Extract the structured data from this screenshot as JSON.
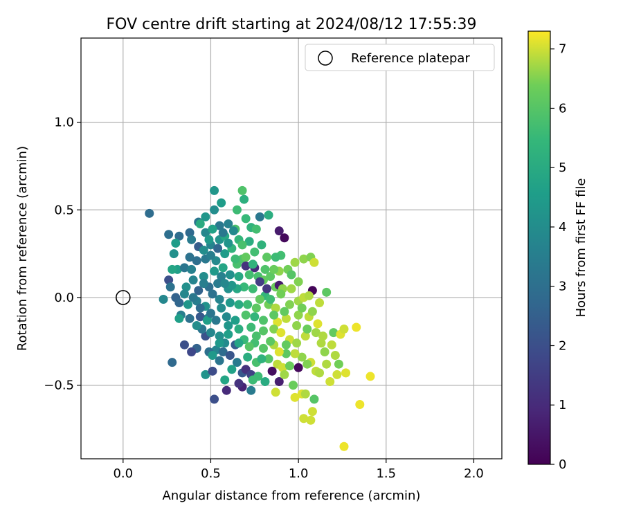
{
  "chart_data": {
    "type": "scatter",
    "title": "FOV centre drift starting at 2024/08/12 17:55:39",
    "xlabel": "Angular distance from reference (arcmin)",
    "ylabel": "Rotation from reference (arcmin)",
    "xlim": [
      -0.24,
      2.16
    ],
    "ylim": [
      -0.92,
      1.48
    ],
    "xticks": [
      0.0,
      0.5,
      1.0,
      1.5,
      2.0
    ],
    "xtick_labels": [
      "0.0",
      "0.5",
      "1.0",
      "1.5",
      "2.0"
    ],
    "yticks": [
      -0.5,
      0.0,
      0.5,
      1.0
    ],
    "ytick_labels": [
      "−0.5",
      "0.0",
      "0.5",
      "1.0"
    ],
    "grid": true,
    "legend": {
      "placement": "top-right",
      "entries": [
        {
          "label": "Reference platepar",
          "marker": "open-circle"
        }
      ]
    },
    "reference_point": {
      "x": 0.0,
      "y": 0.0,
      "label": "Reference platepar"
    },
    "colorbar": {
      "label": "Hours from first FF file",
      "range": [
        0,
        7.3
      ],
      "ticks": [
        0,
        1,
        2,
        3,
        4,
        5,
        6,
        7
      ],
      "tick_labels": [
        "0",
        "1",
        "2",
        "3",
        "4",
        "5",
        "6",
        "7"
      ],
      "colormap": "viridis"
    },
    "points": [
      {
        "x": 0.15,
        "y": 0.48,
        "h": 2.9
      },
      {
        "x": 0.52,
        "y": 0.61,
        "h": 4.3
      },
      {
        "x": 0.68,
        "y": 0.61,
        "h": 5.9
      },
      {
        "x": 0.56,
        "y": 0.54,
        "h": 4.5
      },
      {
        "x": 0.69,
        "y": 0.56,
        "h": 5.2
      },
      {
        "x": 0.65,
        "y": 0.5,
        "h": 5.6
      },
      {
        "x": 0.52,
        "y": 0.5,
        "h": 4.0
      },
      {
        "x": 0.47,
        "y": 0.46,
        "h": 4.3
      },
      {
        "x": 0.43,
        "y": 0.43,
        "h": 3.2
      },
      {
        "x": 0.44,
        "y": 0.42,
        "h": 5.0
      },
      {
        "x": 0.26,
        "y": 0.36,
        "h": 3.0
      },
      {
        "x": 0.32,
        "y": 0.35,
        "h": 2.9
      },
      {
        "x": 0.38,
        "y": 0.37,
        "h": 2.8
      },
      {
        "x": 0.3,
        "y": 0.31,
        "h": 4.5
      },
      {
        "x": 0.39,
        "y": 0.33,
        "h": 3.4
      },
      {
        "x": 0.47,
        "y": 0.37,
        "h": 3.8
      },
      {
        "x": 0.55,
        "y": 0.41,
        "h": 3.3
      },
      {
        "x": 0.6,
        "y": 0.42,
        "h": 3.6
      },
      {
        "x": 0.7,
        "y": 0.45,
        "h": 5.5
      },
      {
        "x": 0.78,
        "y": 0.46,
        "h": 3.3
      },
      {
        "x": 0.83,
        "y": 0.47,
        "h": 5.1
      },
      {
        "x": 0.73,
        "y": 0.4,
        "h": 5.3
      },
      {
        "x": 0.76,
        "y": 0.39,
        "h": 5.7
      },
      {
        "x": 0.64,
        "y": 0.39,
        "h": 5.8
      },
      {
        "x": 0.63,
        "y": 0.38,
        "h": 3.9
      },
      {
        "x": 0.89,
        "y": 0.38,
        "h": 0.6
      },
      {
        "x": 0.92,
        "y": 0.34,
        "h": 0.2
      },
      {
        "x": 0.79,
        "y": 0.3,
        "h": 5.3
      },
      {
        "x": 0.29,
        "y": 0.25,
        "h": 4.1
      },
      {
        "x": 0.38,
        "y": 0.23,
        "h": 3.1
      },
      {
        "x": 0.43,
        "y": 0.29,
        "h": 2.4
      },
      {
        "x": 0.5,
        "y": 0.3,
        "h": 3.7
      },
      {
        "x": 0.55,
        "y": 0.33,
        "h": 4.2
      },
      {
        "x": 0.58,
        "y": 0.35,
        "h": 4.9
      },
      {
        "x": 0.66,
        "y": 0.33,
        "h": 5.4
      },
      {
        "x": 0.72,
        "y": 0.32,
        "h": 5.1
      },
      {
        "x": 0.9,
        "y": 0.24,
        "h": 5.7
      },
      {
        "x": 0.87,
        "y": 0.23,
        "h": 5.6
      },
      {
        "x": 0.82,
        "y": 0.23,
        "h": 6.1
      },
      {
        "x": 0.98,
        "y": 0.2,
        "h": 6.7
      },
      {
        "x": 1.03,
        "y": 0.22,
        "h": 6.6
      },
      {
        "x": 1.07,
        "y": 0.23,
        "h": 6.5
      },
      {
        "x": 1.09,
        "y": 0.2,
        "h": 7.0
      },
      {
        "x": 0.89,
        "y": 0.15,
        "h": 6.6
      },
      {
        "x": 0.94,
        "y": 0.16,
        "h": 6.4
      },
      {
        "x": 0.75,
        "y": 0.17,
        "h": 1.0
      },
      {
        "x": 0.68,
        "y": 0.22,
        "h": 5.9
      },
      {
        "x": 0.7,
        "y": 0.23,
        "h": 6.2
      },
      {
        "x": 0.65,
        "y": 0.19,
        "h": 5.8
      },
      {
        "x": 0.57,
        "y": 0.17,
        "h": 4.8
      },
      {
        "x": 0.53,
        "y": 0.21,
        "h": 3.9
      },
      {
        "x": 0.47,
        "y": 0.22,
        "h": 3.3
      },
      {
        "x": 0.42,
        "y": 0.21,
        "h": 3.0
      },
      {
        "x": 0.31,
        "y": 0.16,
        "h": 4.6
      },
      {
        "x": 0.28,
        "y": 0.16,
        "h": 4.8
      },
      {
        "x": 0.35,
        "y": 0.17,
        "h": 3.2
      },
      {
        "x": 0.39,
        "y": 0.16,
        "h": 3.6
      },
      {
        "x": 0.26,
        "y": 0.1,
        "h": 2.0
      },
      {
        "x": 0.4,
        "y": 0.1,
        "h": 3.7
      },
      {
        "x": 0.46,
        "y": 0.12,
        "h": 4.0
      },
      {
        "x": 0.56,
        "y": 0.12,
        "h": 3.6
      },
      {
        "x": 0.61,
        "y": 0.13,
        "h": 4.1
      },
      {
        "x": 0.72,
        "y": 0.13,
        "h": 5.7
      },
      {
        "x": 0.77,
        "y": 0.12,
        "h": 5.8
      },
      {
        "x": 0.8,
        "y": 0.1,
        "h": 6.2
      },
      {
        "x": 0.84,
        "y": 0.12,
        "h": 6.1
      },
      {
        "x": 0.87,
        "y": 0.06,
        "h": 6.3
      },
      {
        "x": 0.89,
        "y": 0.07,
        "h": 0.6
      },
      {
        "x": 0.96,
        "y": 0.13,
        "h": 6.0
      },
      {
        "x": 0.91,
        "y": 0.05,
        "h": 6.6
      },
      {
        "x": 0.81,
        "y": 0.01,
        "h": 5.4
      },
      {
        "x": 0.78,
        "y": -0.01,
        "h": 6.2
      },
      {
        "x": 0.74,
        "y": 0.05,
        "h": 5.6
      },
      {
        "x": 0.69,
        "y": 0.06,
        "h": 5.5
      },
      {
        "x": 0.65,
        "y": 0.05,
        "h": 4.9
      },
      {
        "x": 0.6,
        "y": 0.05,
        "h": 4.1
      },
      {
        "x": 0.54,
        "y": 0.08,
        "h": 3.4
      },
      {
        "x": 0.49,
        "y": 0.06,
        "h": 3.0
      },
      {
        "x": 0.43,
        "y": 0.04,
        "h": 2.6
      },
      {
        "x": 0.36,
        "y": 0.06,
        "h": 4.1
      },
      {
        "x": 0.3,
        "y": 0.0,
        "h": 2.6
      },
      {
        "x": 0.23,
        "y": -0.01,
        "h": 3.8
      },
      {
        "x": 0.32,
        "y": -0.03,
        "h": 2.7
      },
      {
        "x": 0.37,
        "y": -0.04,
        "h": 4.3
      },
      {
        "x": 0.42,
        "y": -0.02,
        "h": 3.5
      },
      {
        "x": 0.47,
        "y": -0.05,
        "h": 4.2
      },
      {
        "x": 0.55,
        "y": -0.01,
        "h": 3.7
      },
      {
        "x": 0.61,
        "y": -0.03,
        "h": 4.4
      },
      {
        "x": 0.66,
        "y": -0.04,
        "h": 5.0
      },
      {
        "x": 0.71,
        "y": -0.04,
        "h": 5.6
      },
      {
        "x": 0.76,
        "y": -0.06,
        "h": 6.1
      },
      {
        "x": 0.83,
        "y": -0.04,
        "h": 6.4
      },
      {
        "x": 0.87,
        "y": -0.06,
        "h": 6.8
      },
      {
        "x": 0.95,
        "y": -0.04,
        "h": 6.5
      },
      {
        "x": 1.0,
        "y": -0.02,
        "h": 6.7
      },
      {
        "x": 1.03,
        "y": 0.0,
        "h": 6.9
      },
      {
        "x": 1.08,
        "y": 0.04,
        "h": 0.1
      },
      {
        "x": 1.06,
        "y": 0.01,
        "h": 6.8
      },
      {
        "x": 1.12,
        "y": -0.03,
        "h": 6.9
      },
      {
        "x": 1.16,
        "y": 0.03,
        "h": 6.1
      },
      {
        "x": 1.06,
        "y": -0.11,
        "h": 6.9
      },
      {
        "x": 1.0,
        "y": -0.1,
        "h": 6.6
      },
      {
        "x": 0.93,
        "y": -0.12,
        "h": 6.9
      },
      {
        "x": 0.88,
        "y": -0.14,
        "h": 7.1
      },
      {
        "x": 0.8,
        "y": -0.13,
        "h": 5.9
      },
      {
        "x": 0.75,
        "y": -0.11,
        "h": 5.4
      },
      {
        "x": 0.7,
        "y": -0.1,
        "h": 5.9
      },
      {
        "x": 0.64,
        "y": -0.13,
        "h": 4.6
      },
      {
        "x": 0.59,
        "y": -0.11,
        "h": 3.9
      },
      {
        "x": 0.53,
        "y": -0.13,
        "h": 3.3
      },
      {
        "x": 0.48,
        "y": -0.12,
        "h": 3.6
      },
      {
        "x": 0.44,
        "y": -0.11,
        "h": 2.3
      },
      {
        "x": 0.38,
        "y": -0.12,
        "h": 3.1
      },
      {
        "x": 0.33,
        "y": -0.1,
        "h": 3.5
      },
      {
        "x": 0.32,
        "y": -0.12,
        "h": 4.6
      },
      {
        "x": 0.47,
        "y": -0.22,
        "h": 2.1
      },
      {
        "x": 0.55,
        "y": -0.22,
        "h": 4.1
      },
      {
        "x": 0.6,
        "y": -0.21,
        "h": 4.6
      },
      {
        "x": 0.66,
        "y": -0.18,
        "h": 5.1
      },
      {
        "x": 0.73,
        "y": -0.17,
        "h": 5.6
      },
      {
        "x": 0.8,
        "y": -0.19,
        "h": 6.0
      },
      {
        "x": 0.86,
        "y": -0.18,
        "h": 6.5
      },
      {
        "x": 0.9,
        "y": -0.2,
        "h": 7.1
      },
      {
        "x": 0.95,
        "y": -0.24,
        "h": 7.0
      },
      {
        "x": 1.04,
        "y": -0.22,
        "h": 6.9
      },
      {
        "x": 1.1,
        "y": -0.2,
        "h": 6.7
      },
      {
        "x": 1.14,
        "y": -0.22,
        "h": 6.8
      },
      {
        "x": 1.2,
        "y": -0.2,
        "h": 6.2
      },
      {
        "x": 1.24,
        "y": -0.21,
        "h": 7.1
      },
      {
        "x": 1.26,
        "y": -0.18,
        "h": 7.0
      },
      {
        "x": 1.33,
        "y": -0.17,
        "h": 7.2
      },
      {
        "x": 1.41,
        "y": -0.45,
        "h": 7.2
      },
      {
        "x": 1.35,
        "y": -0.61,
        "h": 7.2
      },
      {
        "x": 1.26,
        "y": -0.85,
        "h": 7.2
      },
      {
        "x": 1.27,
        "y": -0.43,
        "h": 7.1
      },
      {
        "x": 1.22,
        "y": -0.44,
        "h": 7.0
      },
      {
        "x": 1.18,
        "y": -0.48,
        "h": 7.0
      },
      {
        "x": 1.1,
        "y": -0.42,
        "h": 6.9
      },
      {
        "x": 1.07,
        "y": -0.37,
        "h": 7.0
      },
      {
        "x": 1.02,
        "y": -0.34,
        "h": 6.6
      },
      {
        "x": 0.98,
        "y": -0.32,
        "h": 6.9
      },
      {
        "x": 0.93,
        "y": -0.32,
        "h": 6.1
      },
      {
        "x": 0.89,
        "y": -0.31,
        "h": 7.1
      },
      {
        "x": 0.86,
        "y": -0.27,
        "h": 6.8
      },
      {
        "x": 0.8,
        "y": -0.29,
        "h": 6.0
      },
      {
        "x": 0.75,
        "y": -0.26,
        "h": 5.7
      },
      {
        "x": 0.69,
        "y": -0.24,
        "h": 5.5
      },
      {
        "x": 0.64,
        "y": -0.27,
        "h": 2.4
      },
      {
        "x": 0.58,
        "y": -0.26,
        "h": 3.9
      },
      {
        "x": 0.53,
        "y": -0.3,
        "h": 3.7
      },
      {
        "x": 0.49,
        "y": -0.31,
        "h": 3.0
      },
      {
        "x": 0.42,
        "y": -0.29,
        "h": 2.6
      },
      {
        "x": 0.35,
        "y": -0.27,
        "h": 2.0
      },
      {
        "x": 0.39,
        "y": -0.31,
        "h": 1.8
      },
      {
        "x": 0.51,
        "y": -0.33,
        "h": 4.4
      },
      {
        "x": 0.57,
        "y": -0.31,
        "h": 2.9
      },
      {
        "x": 0.61,
        "y": -0.33,
        "h": 2.2
      },
      {
        "x": 0.71,
        "y": -0.34,
        "h": 5.1
      },
      {
        "x": 0.76,
        "y": -0.37,
        "h": 5.8
      },
      {
        "x": 0.83,
        "y": -0.35,
        "h": 6.0
      },
      {
        "x": 0.88,
        "y": -0.38,
        "h": 6.9
      },
      {
        "x": 0.91,
        "y": -0.4,
        "h": 7.0
      },
      {
        "x": 0.95,
        "y": -0.39,
        "h": 6.3
      },
      {
        "x": 1.0,
        "y": -0.4,
        "h": 0.2
      },
      {
        "x": 1.05,
        "y": -0.38,
        "h": 6.5
      },
      {
        "x": 1.12,
        "y": -0.43,
        "h": 6.8
      },
      {
        "x": 0.28,
        "y": -0.37,
        "h": 2.8
      },
      {
        "x": 0.47,
        "y": -0.44,
        "h": 4.2
      },
      {
        "x": 0.51,
        "y": -0.42,
        "h": 1.9
      },
      {
        "x": 0.55,
        "y": -0.36,
        "h": 3.2
      },
      {
        "x": 0.65,
        "y": -0.37,
        "h": 3.4
      },
      {
        "x": 0.68,
        "y": -0.43,
        "h": 2.3
      },
      {
        "x": 0.7,
        "y": -0.41,
        "h": 1.2
      },
      {
        "x": 0.73,
        "y": -0.44,
        "h": 1.6
      },
      {
        "x": 0.77,
        "y": -0.45,
        "h": 5.6
      },
      {
        "x": 0.81,
        "y": -0.48,
        "h": 5.0
      },
      {
        "x": 0.85,
        "y": -0.42,
        "h": 0.3
      },
      {
        "x": 0.89,
        "y": -0.48,
        "h": 0.7
      },
      {
        "x": 0.92,
        "y": -0.44,
        "h": 6.7
      },
      {
        "x": 0.97,
        "y": -0.5,
        "h": 6.3
      },
      {
        "x": 0.87,
        "y": -0.54,
        "h": 7.0
      },
      {
        "x": 1.02,
        "y": -0.55,
        "h": 7.1
      },
      {
        "x": 1.04,
        "y": -0.55,
        "h": 6.8
      },
      {
        "x": 0.98,
        "y": -0.57,
        "h": 7.1
      },
      {
        "x": 1.09,
        "y": -0.58,
        "h": 6.0
      },
      {
        "x": 1.08,
        "y": -0.65,
        "h": 7.0
      },
      {
        "x": 1.03,
        "y": -0.69,
        "h": 7.0
      },
      {
        "x": 1.07,
        "y": -0.7,
        "h": 7.0
      },
      {
        "x": 0.73,
        "y": -0.53,
        "h": 3.4
      },
      {
        "x": 0.68,
        "y": -0.51,
        "h": 0.8
      },
      {
        "x": 0.66,
        "y": -0.49,
        "h": 1.2
      },
      {
        "x": 0.59,
        "y": -0.53,
        "h": 1.0
      },
      {
        "x": 0.58,
        "y": -0.47,
        "h": 4.8
      },
      {
        "x": 0.52,
        "y": -0.58,
        "h": 2.0
      },
      {
        "x": 0.48,
        "y": -0.13,
        "h": 4.6
      },
      {
        "x": 0.5,
        "y": -0.09,
        "h": 3.2
      },
      {
        "x": 0.45,
        "y": -0.18,
        "h": 3.2
      },
      {
        "x": 0.46,
        "y": 0.08,
        "h": 3.5
      },
      {
        "x": 0.52,
        "y": 0.15,
        "h": 4.4
      },
      {
        "x": 0.58,
        "y": 0.25,
        "h": 4.5
      },
      {
        "x": 0.62,
        "y": 0.28,
        "h": 5.3
      },
      {
        "x": 0.7,
        "y": 0.18,
        "h": 1.2
      },
      {
        "x": 0.74,
        "y": 0.19,
        "h": 5.3
      },
      {
        "x": 0.78,
        "y": 0.09,
        "h": 1.5
      },
      {
        "x": 0.82,
        "y": 0.05,
        "h": 1.3
      },
      {
        "x": 0.84,
        "y": -0.01,
        "h": 5.6
      },
      {
        "x": 0.9,
        "y": 0.02,
        "h": 6.4
      },
      {
        "x": 0.96,
        "y": 0.05,
        "h": 6.7
      },
      {
        "x": 1.02,
        "y": -0.06,
        "h": 6.4
      },
      {
        "x": 1.08,
        "y": -0.08,
        "h": 6.6
      },
      {
        "x": 1.11,
        "y": -0.15,
        "h": 7.1
      },
      {
        "x": 1.05,
        "y": -0.18,
        "h": 6.3
      },
      {
        "x": 0.99,
        "y": -0.16,
        "h": 6.6
      },
      {
        "x": 0.92,
        "y": -0.08,
        "h": 6.2
      },
      {
        "x": 0.86,
        "y": -0.1,
        "h": 6.1
      },
      {
        "x": 0.76,
        "y": -0.22,
        "h": 5.8
      },
      {
        "x": 0.72,
        "y": -0.28,
        "h": 6.0
      },
      {
        "x": 0.66,
        "y": -0.26,
        "h": 4.8
      },
      {
        "x": 0.6,
        "y": -0.16,
        "h": 4.3
      },
      {
        "x": 0.56,
        "y": -0.06,
        "h": 4.0
      },
      {
        "x": 0.62,
        "y": 0.07,
        "h": 4.3
      },
      {
        "x": 0.66,
        "y": 0.12,
        "h": 4.9
      },
      {
        "x": 0.58,
        "y": 0.08,
        "h": 3.8
      },
      {
        "x": 0.51,
        "y": 0.02,
        "h": 3.1
      },
      {
        "x": 0.44,
        "y": -0.06,
        "h": 2.9
      },
      {
        "x": 0.4,
        "y": 0.0,
        "h": 3.3
      },
      {
        "x": 0.35,
        "y": 0.02,
        "h": 3.8
      },
      {
        "x": 0.27,
        "y": 0.06,
        "h": 3.1
      },
      {
        "x": 0.46,
        "y": 0.27,
        "h": 4.0
      },
      {
        "x": 0.5,
        "y": 0.24,
        "h": 3.5
      },
      {
        "x": 0.54,
        "y": 0.28,
        "h": 2.7
      },
      {
        "x": 0.57,
        "y": 0.37,
        "h": 3.3
      },
      {
        "x": 0.51,
        "y": 0.39,
        "h": 4.7
      },
      {
        "x": 0.49,
        "y": 0.33,
        "h": 4.4
      },
      {
        "x": 0.6,
        "y": 0.31,
        "h": 4.2
      },
      {
        "x": 0.64,
        "y": 0.22,
        "h": 5.6
      },
      {
        "x": 0.68,
        "y": 0.3,
        "h": 5.8
      },
      {
        "x": 0.75,
        "y": 0.26,
        "h": 5.7
      },
      {
        "x": 0.81,
        "y": 0.16,
        "h": 5.9
      },
      {
        "x": 0.86,
        "y": 0.16,
        "h": 6.3
      },
      {
        "x": 1.0,
        "y": 0.09,
        "h": 6.5
      },
      {
        "x": 1.13,
        "y": -0.26,
        "h": 6.8
      },
      {
        "x": 1.19,
        "y": -0.27,
        "h": 6.9
      },
      {
        "x": 1.21,
        "y": -0.33,
        "h": 6.8
      },
      {
        "x": 1.15,
        "y": -0.31,
        "h": 6.6
      },
      {
        "x": 1.23,
        "y": -0.38,
        "h": 6.4
      },
      {
        "x": 1.16,
        "y": -0.38,
        "h": 6.8
      },
      {
        "x": 0.99,
        "y": -0.26,
        "h": 6.7
      },
      {
        "x": 0.93,
        "y": -0.27,
        "h": 6.2
      },
      {
        "x": 0.84,
        "y": -0.25,
        "h": 6.1
      },
      {
        "x": 0.79,
        "y": -0.35,
        "h": 5.3
      },
      {
        "x": 0.74,
        "y": -0.47,
        "h": 5.6
      },
      {
        "x": 0.62,
        "y": -0.41,
        "h": 4.7
      },
      {
        "x": 0.55,
        "y": -0.26,
        "h": 4.4
      },
      {
        "x": 0.5,
        "y": -0.2,
        "h": 3.8
      },
      {
        "x": 0.42,
        "y": -0.16,
        "h": 4.0
      }
    ]
  }
}
